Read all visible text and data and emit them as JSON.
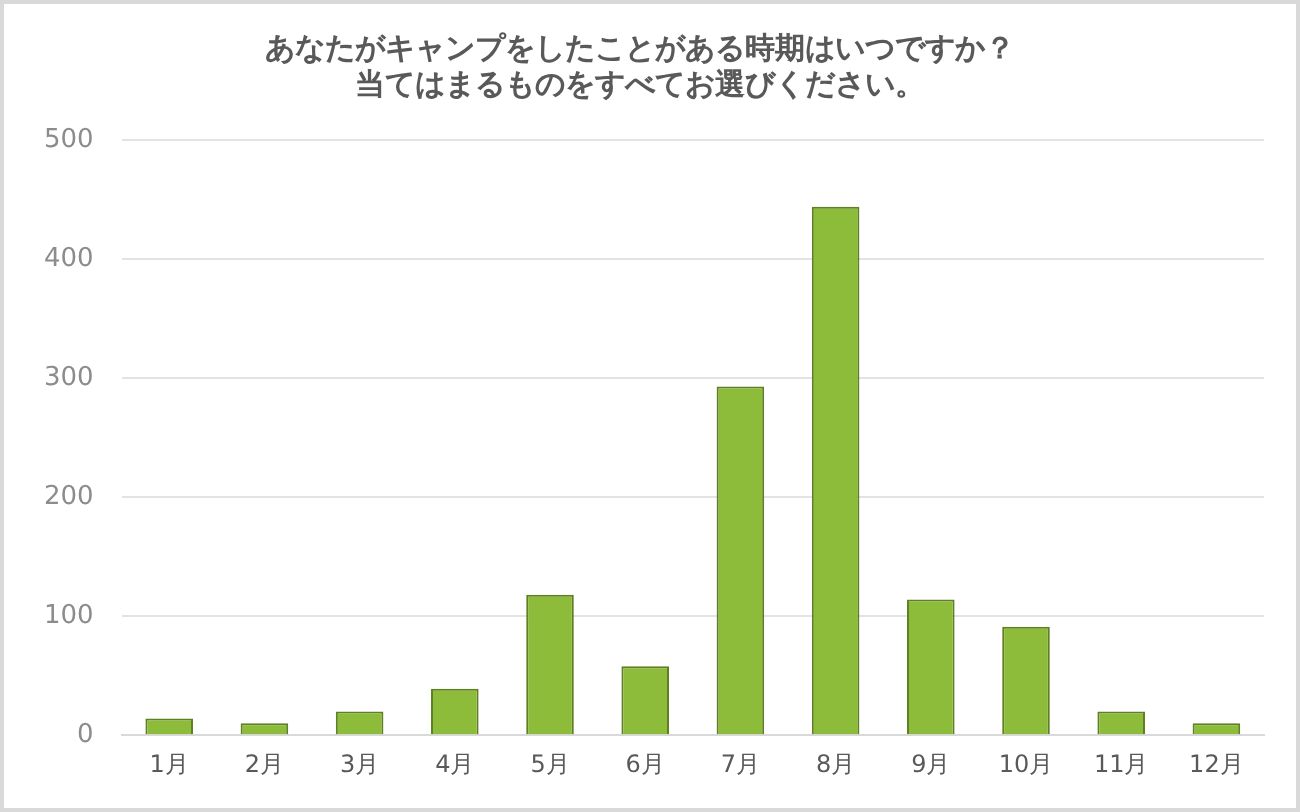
{
  "chart_data": {
    "type": "bar",
    "title": [
      "あなたがキャンプをしたことがある時期はいつですか？",
      "当てはまるものをすべてお選びください。"
    ],
    "categories": [
      "1月",
      "2月",
      "3月",
      "4月",
      "5月",
      "6月",
      "7月",
      "8月",
      "9月",
      "10月",
      "11月",
      "12月"
    ],
    "values": [
      14,
      10,
      20,
      39,
      118,
      58,
      293,
      444,
      114,
      91,
      20,
      10
    ],
    "color": "#8dbb3a",
    "ylim": [
      0,
      500
    ],
    "yticks": [
      0,
      100,
      200,
      300,
      400,
      500
    ],
    "grid": "y",
    "legend": false
  }
}
